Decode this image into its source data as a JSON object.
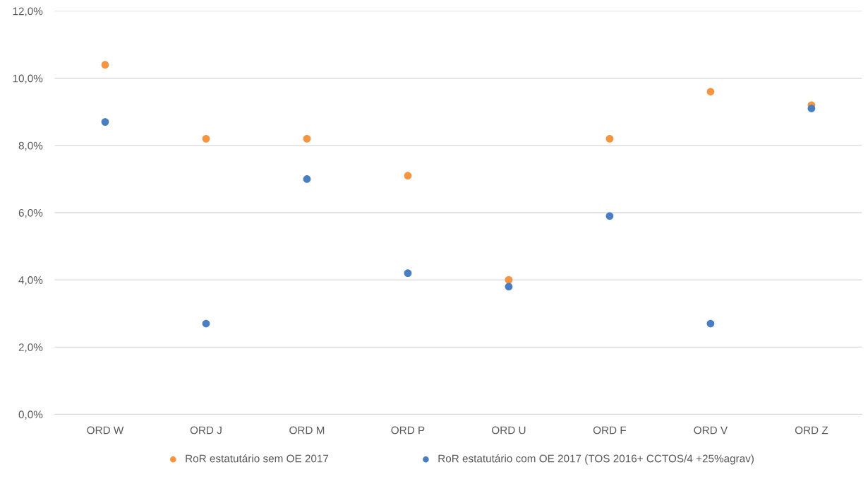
{
  "chart_data": {
    "type": "scatter",
    "categories": [
      "ORD W",
      "ORD J",
      "ORD M",
      "ORD P",
      "ORD U",
      "ORD F",
      "ORD V",
      "ORD Z"
    ],
    "series": [
      {
        "name": "RoR estatutário sem OE 2017",
        "color": "#f59441",
        "values": [
          10.4,
          8.2,
          8.2,
          7.1,
          4.0,
          8.2,
          9.6,
          9.2
        ]
      },
      {
        "name": "RoR estatutário com OE 2017 (TOS 2016+ CCTOS/4 +25%agrav)",
        "color": "#4a7ec2",
        "values": [
          8.7,
          2.7,
          7.0,
          4.2,
          3.8,
          5.9,
          2.7,
          9.1
        ]
      }
    ],
    "ylim": [
      0,
      12
    ],
    "yticks": [
      {
        "value": 0,
        "label": "0,0%"
      },
      {
        "value": 2,
        "label": "2,0%"
      },
      {
        "value": 4,
        "label": "4,0%"
      },
      {
        "value": 6,
        "label": "6,0%"
      },
      {
        "value": 8,
        "label": "8,0%"
      },
      {
        "value": 10,
        "label": "10,0%"
      },
      {
        "value": 12,
        "label": "12,0%"
      }
    ],
    "grid": "y",
    "legend": "bottom",
    "marker": "circle"
  }
}
